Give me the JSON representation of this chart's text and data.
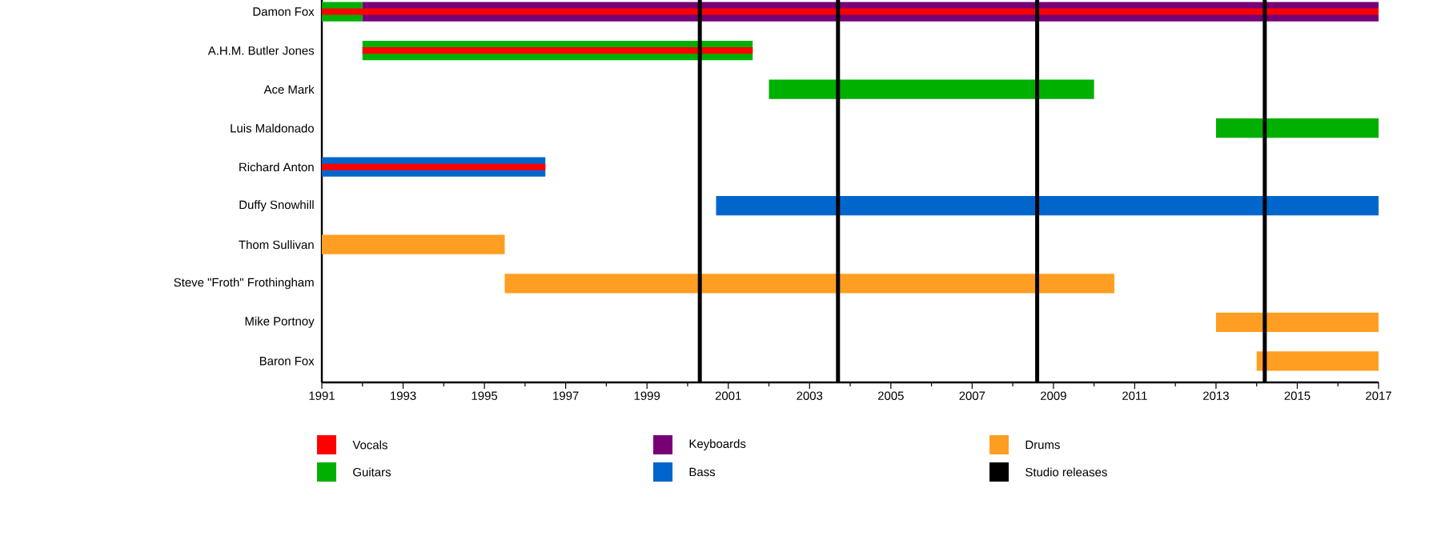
{
  "chart_data": {
    "type": "bar",
    "orientation": "horizontal",
    "categories": [
      "Damon Fox",
      "A.H.M. Butler Jones",
      "Ace Mark",
      "Luis Maldonado",
      "Richard Anton",
      "Duffy Snowhill",
      "Thom Sullivan",
      "Steve \"Froth\" Frothingham",
      "Mike Portnoy",
      "Baron Fox"
    ],
    "series": [
      {
        "name": "Vocals",
        "color": "#ff0000",
        "base": [
          1991,
          1992,
          null,
          null,
          1991,
          null,
          null,
          null,
          null,
          null
        ],
        "values": [
          26,
          9.6,
          null,
          null,
          5.5,
          null,
          null,
          null,
          null,
          null
        ]
      },
      {
        "name": "Guitars",
        "color": "#00b000",
        "base": [
          1991,
          1992,
          2002,
          2013,
          null,
          null,
          null,
          null,
          null,
          null
        ],
        "values": [
          1,
          9.6,
          8,
          4,
          null,
          null,
          null,
          null,
          null,
          null
        ]
      },
      {
        "name": "Keyboards",
        "color": "#770077",
        "base": [
          1992,
          null,
          null,
          null,
          null,
          null,
          null,
          null,
          null,
          null
        ],
        "values": [
          25,
          null,
          null,
          null,
          null,
          null,
          null,
          null,
          null,
          null
        ]
      },
      {
        "name": "Bass",
        "color": "#0066cc",
        "base": [
          null,
          null,
          null,
          null,
          1991,
          2000.7,
          null,
          null,
          null,
          null
        ],
        "values": [
          null,
          null,
          null,
          null,
          5.5,
          16.3,
          null,
          null,
          null,
          null
        ]
      },
      {
        "name": "Drums",
        "color": "#ff9e22",
        "base": [
          null,
          null,
          null,
          null,
          null,
          null,
          1991,
          1995.5,
          2013,
          2014
        ],
        "values": [
          null,
          null,
          null,
          null,
          null,
          null,
          4.5,
          15,
          4,
          3
        ]
      }
    ],
    "ref_lines": [
      {
        "axis": "x",
        "value": 2000.3,
        "label": "Studio releases",
        "color": "#000000"
      },
      {
        "axis": "x",
        "value": 2003.7,
        "color": "#000000"
      },
      {
        "axis": "x",
        "value": 2008.6,
        "color": "#000000"
      },
      {
        "axis": "x",
        "value": 2014.2,
        "color": "#000000"
      }
    ],
    "xlim": [
      1991,
      2017
    ],
    "xticks": [
      1991,
      {
        "value": 1992,
        "label": null
      },
      1993,
      {
        "value": 1994,
        "label": null
      },
      1995,
      {
        "value": 1996,
        "label": null
      },
      1997,
      {
        "value": 1998,
        "label": null
      },
      1999,
      {
        "value": 2000,
        "label": null
      },
      2001,
      {
        "value": 2002,
        "label": null
      },
      2003,
      {
        "value": 2004,
        "label": null
      },
      2005,
      {
        "value": 2006,
        "label": null
      },
      2007,
      {
        "value": 2008,
        "label": null
      },
      2009,
      {
        "value": 2010,
        "label": null
      },
      2011,
      {
        "value": 2012,
        "label": null
      },
      2013,
      {
        "value": 2014,
        "label": null
      },
      2015,
      {
        "value": 2016,
        "label": null
      },
      2017
    ],
    "legend": "bottom"
  }
}
